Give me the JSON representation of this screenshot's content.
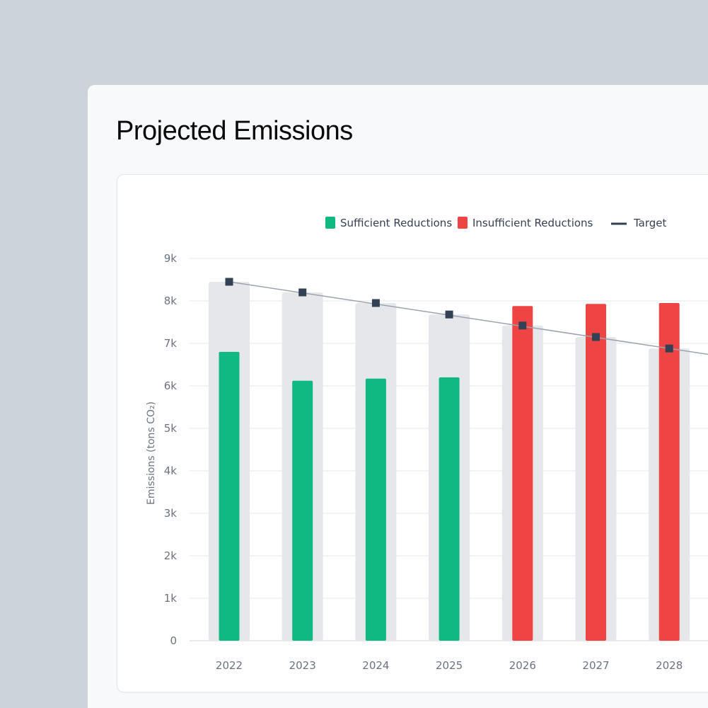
{
  "page": {
    "title": "Projected Emissions"
  },
  "colors": {
    "sufficient": "#10b981",
    "insufficient": "#ef4444",
    "target": "#334155",
    "background_bar": "#e5e7eb",
    "grid": "#e5e7eb",
    "axis_text": "#6b7280"
  },
  "chart_data": {
    "type": "bar",
    "title": "",
    "xlabel": "",
    "ylabel": "Emissions (tons CO₂)",
    "ylim": [
      0,
      9000
    ],
    "yticks": [
      0,
      1000,
      2000,
      3000,
      4000,
      5000,
      6000,
      7000,
      8000,
      9000
    ],
    "ytick_labels": [
      "0",
      "1k",
      "2k",
      "3k",
      "4k",
      "5k",
      "6k",
      "7k",
      "8k",
      "9k"
    ],
    "grid": true,
    "legend_position": "top",
    "legend": [
      {
        "key": "sufficient",
        "label": "Sufficient Reductions",
        "marker": "square"
      },
      {
        "key": "insufficient",
        "label": "Insufficient Reductions",
        "marker": "square"
      },
      {
        "key": "target",
        "label": "Target",
        "marker": "line"
      }
    ],
    "categories": [
      "2022",
      "2023",
      "2024",
      "2025",
      "2026",
      "2027",
      "2028"
    ],
    "series": [
      {
        "name": "Target",
        "type": "line",
        "values": [
          8450,
          8200,
          7950,
          7680,
          7420,
          7150,
          6880
        ]
      },
      {
        "name": "Projected Emissions",
        "type": "bar",
        "values": [
          6800,
          6120,
          6170,
          6200,
          7880,
          7930,
          7950
        ],
        "status": [
          "sufficient",
          "sufficient",
          "sufficient",
          "sufficient",
          "insufficient",
          "insufficient",
          "insufficient"
        ]
      }
    ]
  }
}
